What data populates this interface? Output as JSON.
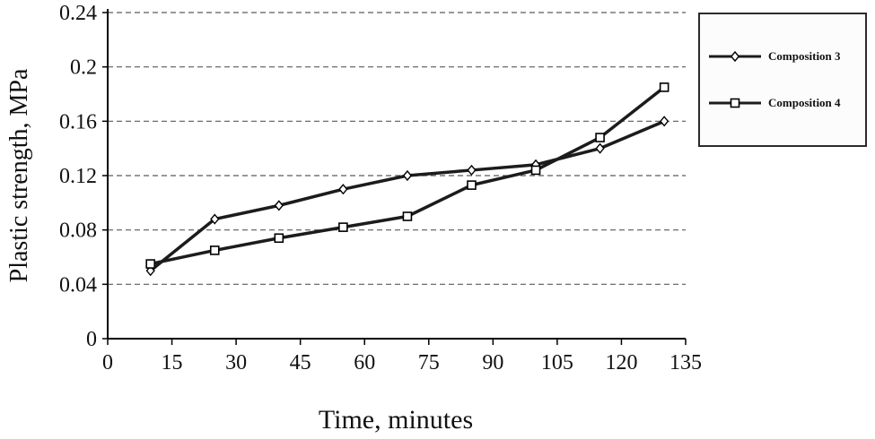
{
  "figure": {
    "xlabel": "Time, minutes",
    "ylabel": "Plastic strength, MPa"
  },
  "legend": {
    "items": [
      {
        "label": "Composition 3",
        "marker": "diamond"
      },
      {
        "label": "Composition 4",
        "marker": "square"
      }
    ]
  },
  "chart_data": {
    "type": "line",
    "x": [
      10,
      25,
      40,
      55,
      70,
      85,
      100,
      115,
      130
    ],
    "series": [
      {
        "name": "Composition 3",
        "marker": "diamond",
        "values": [
          0.05,
          0.088,
          0.098,
          0.11,
          0.12,
          0.124,
          0.128,
          0.14,
          0.16
        ]
      },
      {
        "name": "Composition 4",
        "marker": "square",
        "values": [
          0.055,
          0.065,
          0.074,
          0.082,
          0.09,
          0.113,
          0.124,
          0.148,
          0.185
        ]
      }
    ],
    "title": "",
    "xlabel": "Time, minutes",
    "ylabel": "Plastic strength, MPa",
    "xlim": [
      0,
      135
    ],
    "ylim": [
      0,
      0.24
    ],
    "xticks": [
      0,
      15,
      30,
      45,
      60,
      75,
      90,
      105,
      120,
      135
    ],
    "yticks": [
      0,
      0.04,
      0.08,
      0.12,
      0.16,
      0.2,
      0.24
    ],
    "grid": "horizontal-dashed",
    "legend_position": "outside-right",
    "line_color": "#1c1c1c",
    "grid_color": "#5a5a5a"
  }
}
